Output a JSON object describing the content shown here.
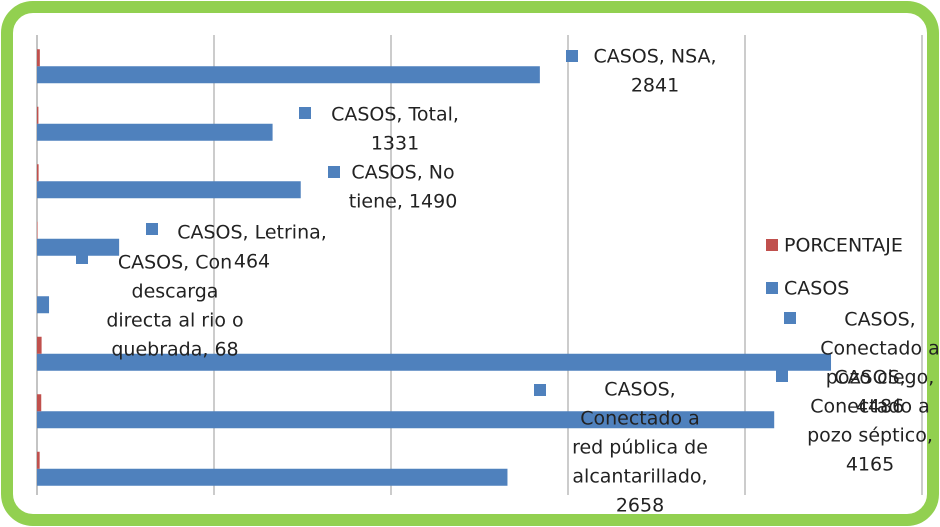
{
  "chart_data": {
    "type": "barh",
    "categories": [
      "Conectado a red pública de alcantarillado",
      "Conectado a pozo séptico",
      "Conectado a pozo ciego",
      "Con descarga directa al rio o quebrada",
      "Letrina",
      "No tiene",
      "Total",
      "NSA"
    ],
    "series": [
      {
        "name": "CASOS",
        "color": "#4f81bd",
        "values": [
          2658,
          4165,
          4486,
          68,
          464,
          1490,
          1331,
          2841
        ],
        "value_labels": [
          [
            "CASOS,",
            "Conectado a",
            "red pública de",
            "alcantarillado,",
            "2658"
          ],
          [
            "CASOS,",
            "Conectado a",
            "pozo séptico,",
            "4165"
          ],
          [
            "CASOS,",
            "Conectado a",
            "pozo ciego,",
            "4486"
          ],
          [
            "CASOS, Con",
            "descarga",
            "directa al rio o",
            "quebrada, 68"
          ],
          [
            "CASOS, Letrina,",
            "464"
          ],
          [
            "CASOS, No",
            "tiene, 1490"
          ],
          [
            "CASOS, Total,",
            "1331"
          ],
          [
            "CASOS, NSA,",
            "2841"
          ]
        ]
      },
      {
        "name": "PORCENTAJE",
        "color": "#c0504d",
        "values": [
          15,
          24,
          26,
          0.4,
          3,
          9,
          8,
          16
        ]
      }
    ],
    "xlim": [
      0,
      5000
    ],
    "xticks": [
      0,
      1000,
      2000,
      3000,
      4000,
      5000
    ],
    "grid": true,
    "legend": "right"
  }
}
